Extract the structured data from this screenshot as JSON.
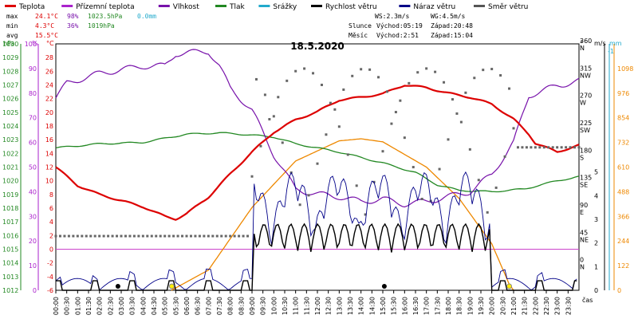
{
  "chart_data": {
    "type": "line",
    "title": "18.5.2020",
    "legend": [
      {
        "name": "Teplota",
        "color": "#dd0000"
      },
      {
        "name": "Přízemní teplota",
        "color": "#aa22cc"
      },
      {
        "name": "Vlhkost",
        "color": "#7711aa"
      },
      {
        "name": "Tlak",
        "color": "#228822"
      },
      {
        "name": "Srážky",
        "color": "#22aacc"
      },
      {
        "name": "Rychlost větru",
        "color": "#000000"
      },
      {
        "name": "Náraz větru",
        "color": "#000088"
      },
      {
        "name": "Směr větru",
        "color": "#555555"
      }
    ],
    "stats": {
      "max": {
        "label": "max",
        "temp": "24.1°C",
        "hum": "98%",
        "press": "1023.5hPa",
        "rain": "0.0mm"
      },
      "min": {
        "label": "min",
        "temp": "4.3°C",
        "hum": "36%",
        "press": "1019hPa"
      },
      "avg": {
        "label": "avg",
        "temp": "15.5°C"
      },
      "ws": "WS:2.3m/s",
      "wg": "WG:4.5m/s",
      "sun": {
        "label": "Slunce",
        "rise": "Východ:05:19",
        "set": "Západ:20:48"
      },
      "moon": {
        "label": "Měsíc",
        "rise": "Východ:2:51",
        "set": "Západ:15:04"
      }
    },
    "axes": {
      "pressure": {
        "unit": "hPa",
        "min": 1012,
        "max": 1030,
        "ticks": [
          1012,
          1013,
          1014,
          1015,
          1016,
          1017,
          1018,
          1019,
          1020,
          1021,
          1022,
          1023,
          1024,
          1025,
          1026,
          1027,
          1028,
          1029,
          1030
        ]
      },
      "humidity": {
        "unit": "%",
        "ticks": [
          0,
          10,
          20,
          30,
          40,
          50,
          60,
          70,
          80,
          90,
          100
        ]
      },
      "temperature": {
        "unit": "°C",
        "min": -6,
        "max": 30,
        "ticks": [
          -6,
          -4,
          -2,
          0,
          2,
          4,
          6,
          8,
          10,
          12,
          14,
          16,
          18,
          20,
          22,
          24,
          26,
          28
        ]
      },
      "direction": {
        "unit": "°",
        "ticks": [
          {
            "deg": "0",
            "dir": "N"
          },
          {
            "deg": "45",
            "dir": "NE"
          },
          {
            "deg": "90",
            "dir": "E"
          },
          {
            "deg": "135",
            "dir": "SE"
          },
          {
            "deg": "180",
            "dir": "S"
          },
          {
            "deg": "225",
            "dir": "SW"
          },
          {
            "deg": "270",
            "dir": "W"
          },
          {
            "deg": "315",
            "dir": "NW"
          },
          {
            "deg": "360",
            "dir": "N"
          }
        ]
      },
      "wind": {
        "unit": "m/s",
        "ticks": [
          0,
          1,
          2,
          3,
          4,
          5
        ]
      },
      "rain": {
        "unit": "mm",
        "ticks": [
          "-1"
        ]
      },
      "solar": {
        "ticks": [
          0,
          122,
          244,
          366,
          488,
          610,
          732,
          854,
          976,
          1098
        ]
      },
      "time": {
        "unit": "čas",
        "ticks": [
          "00:00",
          "00:30",
          "01:00",
          "01:30",
          "02:00",
          "02:30",
          "03:00",
          "03:30",
          "04:00",
          "04:30",
          "05:00",
          "05:30",
          "06:00",
          "06:30",
          "07:00",
          "07:30",
          "08:00",
          "08:30",
          "09:00",
          "09:30",
          "10:00",
          "10:30",
          "11:00",
          "11:30",
          "12:00",
          "12:30",
          "13:00",
          "13:30",
          "14:00",
          "14:30",
          "15:00",
          "15:30",
          "16:00",
          "16:30",
          "17:00",
          "17:30",
          "18:00",
          "18:30",
          "19:00",
          "19:30",
          "20:00",
          "20:30",
          "21:00",
          "21:30",
          "22:00",
          "22:30",
          "23:00",
          "23:30"
        ]
      }
    },
    "series": {
      "temperature": [
        [
          0,
          12
        ],
        [
          1,
          9.3
        ],
        [
          2,
          8
        ],
        [
          3,
          7.1
        ],
        [
          4,
          6.2
        ],
        [
          5,
          4.8
        ],
        [
          5.5,
          4.4
        ],
        [
          6,
          5.2
        ],
        [
          7,
          7.6
        ],
        [
          8,
          11
        ],
        [
          9,
          14.2
        ],
        [
          10,
          17.1
        ],
        [
          11,
          18.9
        ],
        [
          12,
          20.1
        ],
        [
          13,
          21.8
        ],
        [
          14,
          22.2
        ],
        [
          15,
          22.7
        ],
        [
          16,
          24
        ],
        [
          17,
          23.6
        ],
        [
          18,
          22.8
        ],
        [
          19,
          22.2
        ],
        [
          20,
          21.2
        ],
        [
          21,
          19
        ],
        [
          21.7,
          16.8
        ],
        [
          22,
          15.5
        ],
        [
          23,
          14.2
        ],
        [
          24,
          15.2
        ]
      ],
      "humidity": [
        [
          0,
          78
        ],
        [
          0.5,
          84
        ],
        [
          2,
          88
        ],
        [
          4,
          91
        ],
        [
          5,
          91
        ],
        [
          5.5,
          96
        ],
        [
          7,
          97
        ],
        [
          7.5,
          91
        ],
        [
          8,
          82
        ],
        [
          9,
          73
        ],
        [
          10,
          55
        ],
        [
          11,
          41
        ],
        [
          12,
          39
        ],
        [
          13,
          38
        ],
        [
          14,
          36
        ],
        [
          15,
          37
        ],
        [
          16,
          35
        ],
        [
          17,
          36
        ],
        [
          18,
          38
        ],
        [
          19,
          40
        ],
        [
          20,
          47
        ],
        [
          21,
          60
        ],
        [
          21.7,
          79
        ],
        [
          22,
          80
        ],
        [
          23,
          83
        ],
        [
          24,
          85
        ]
      ],
      "pressure": [
        [
          0,
          1022.4
        ],
        [
          2,
          1022.7
        ],
        [
          4,
          1022.8
        ],
        [
          6,
          1023.4
        ],
        [
          7.5,
          1023.5
        ],
        [
          8.5,
          1023.4
        ],
        [
          10,
          1023.2
        ],
        [
          11,
          1022.7
        ],
        [
          13,
          1022.1
        ],
        [
          15,
          1021.3
        ],
        [
          16.5,
          1020.6
        ],
        [
          17.5,
          1019.7
        ],
        [
          18.5,
          1019.3
        ],
        [
          20,
          1019.2
        ],
        [
          21.5,
          1019.4
        ],
        [
          23,
          1020.0
        ],
        [
          24,
          1020.3
        ]
      ],
      "solar": [
        [
          5.3,
          0
        ],
        [
          7,
          100
        ],
        [
          9,
          410
        ],
        [
          11,
          640
        ],
        [
          13,
          740
        ],
        [
          14,
          750
        ],
        [
          15,
          735
        ],
        [
          17,
          610
        ],
        [
          18.5,
          455
        ],
        [
          20,
          230
        ],
        [
          20.8,
          30
        ],
        [
          21,
          0
        ]
      ]
    }
  }
}
